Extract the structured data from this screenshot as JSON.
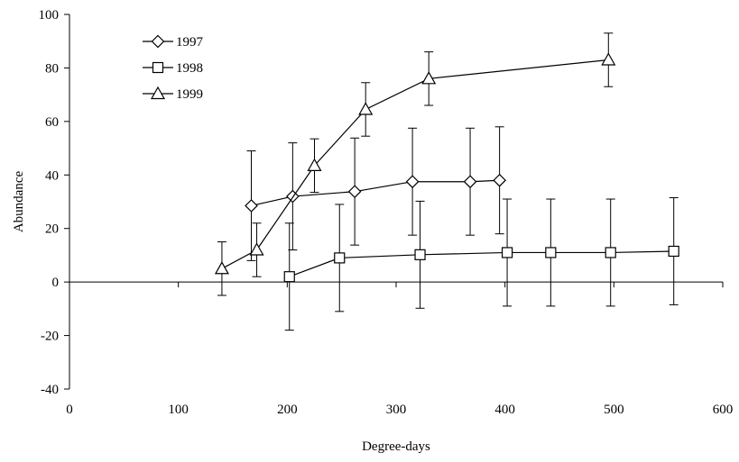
{
  "chart_data": {
    "type": "line",
    "xlabel": "Degree-days",
    "ylabel": "Abundance",
    "xlim": [
      0,
      600
    ],
    "ylim": [
      -40,
      100
    ],
    "x_ticks": [
      "0",
      "100",
      "200",
      "300",
      "400",
      "500",
      "600"
    ],
    "y_ticks": [
      "100",
      "80",
      "60",
      "40",
      "20",
      "0",
      "-20",
      "-40"
    ],
    "grid": false,
    "legend_position": "top-left",
    "series": [
      {
        "name": "1997",
        "marker": "diamond",
        "color": "#000000",
        "points": [
          {
            "x": 167,
            "y": 28.5,
            "err": 20.5
          },
          {
            "x": 205,
            "y": 32,
            "err": 20
          },
          {
            "x": 262,
            "y": 33.8,
            "err": 20
          },
          {
            "x": 315,
            "y": 37.5,
            "err": 20
          },
          {
            "x": 368,
            "y": 37.5,
            "err": 20
          },
          {
            "x": 395,
            "y": 38,
            "err": 20
          }
        ]
      },
      {
        "name": "1998",
        "marker": "square",
        "color": "#000000",
        "points": [
          {
            "x": 202,
            "y": 2,
            "err": 20
          },
          {
            "x": 248,
            "y": 9,
            "err": 20
          },
          {
            "x": 322,
            "y": 10.2,
            "err": 20
          },
          {
            "x": 402,
            "y": 11,
            "err": 20
          },
          {
            "x": 442,
            "y": 11,
            "err": 20
          },
          {
            "x": 497,
            "y": 11,
            "err": 20
          },
          {
            "x": 555,
            "y": 11.5,
            "err": 20
          }
        ]
      },
      {
        "name": "1999",
        "marker": "triangle",
        "color": "#000000",
        "points": [
          {
            "x": 140,
            "y": 5,
            "err": 10
          },
          {
            "x": 172,
            "y": 12,
            "err": 10
          },
          {
            "x": 225,
            "y": 43.5,
            "err": 10
          },
          {
            "x": 272,
            "y": 64.5,
            "err": 10
          },
          {
            "x": 330,
            "y": 76,
            "err": 10
          },
          {
            "x": 495,
            "y": 83,
            "err": 10
          }
        ]
      }
    ]
  }
}
